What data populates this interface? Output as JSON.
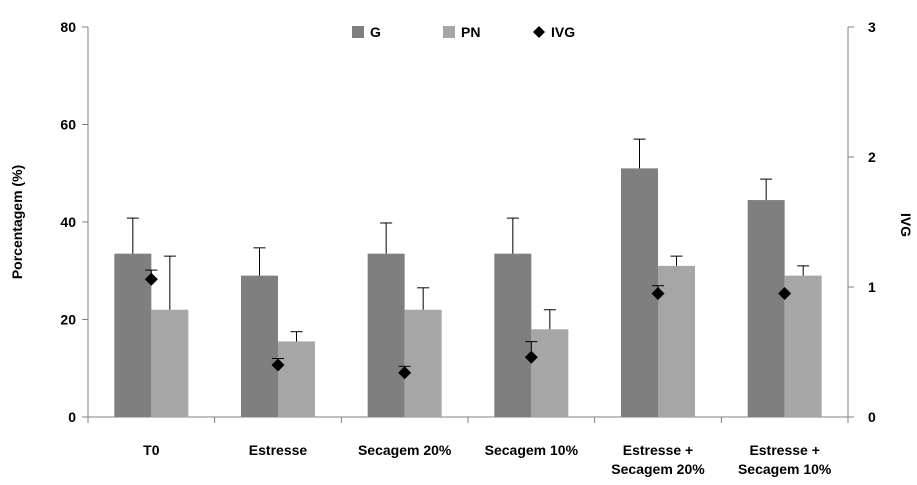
{
  "chart_data": {
    "type": "bar",
    "categories": [
      [
        "T0"
      ],
      [
        "Estresse"
      ],
      [
        "Secagem 20%"
      ],
      [
        "Secagem 10%"
      ],
      [
        "Estresse +",
        "Secagem 20%"
      ],
      [
        "Estresse +",
        "Secagem 10%"
      ]
    ],
    "series": [
      {
        "name": "G",
        "type": "bar",
        "axis": "left",
        "color": "#7f7f7f",
        "values": [
          33.5,
          29.0,
          33.5,
          33.5,
          51.0,
          44.5
        ],
        "errors": [
          7.3,
          5.7,
          6.3,
          7.3,
          6.0,
          4.3
        ]
      },
      {
        "name": "PN",
        "type": "bar",
        "axis": "left",
        "color": "#a6a6a6",
        "values": [
          22.0,
          15.5,
          22.0,
          18.0,
          31.0,
          29.0
        ],
        "errors": [
          11.0,
          2.0,
          4.5,
          4.0,
          2.0,
          2.0
        ]
      },
      {
        "name": "IVG",
        "type": "scatter",
        "axis": "right",
        "color": "#000000",
        "values": [
          1.06,
          0.4,
          0.34,
          0.46,
          0.95,
          0.95
        ],
        "errors": [
          0.07,
          0.05,
          0.05,
          0.12,
          0.06,
          0.0
        ]
      }
    ],
    "ylabel": "Porcentagem (%)",
    "y2label": "IVG",
    "ylim": [
      0,
      80
    ],
    "y2lim": [
      0,
      3
    ],
    "yticks": [
      0,
      20,
      40,
      60,
      80
    ],
    "y2ticks": [
      0,
      1,
      2,
      3
    ],
    "grid": false,
    "legend": "top-center"
  }
}
